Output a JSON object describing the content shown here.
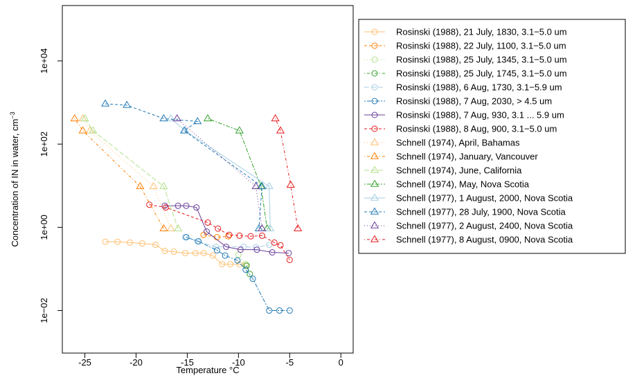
{
  "chart_data": {
    "type": "line",
    "xlabel": "Temperature °C",
    "ylabel": "Concentration of IN in water, cm",
    "ylabel_sup": "−3",
    "xlim": [
      -27.2,
      1.2
    ],
    "ylim": [
      0.00095,
      214000
    ],
    "log_y": true,
    "xticks": [
      -25,
      -20,
      -15,
      -10,
      -5,
      0
    ],
    "yticks": [
      {
        "value": 0.01,
        "label": "1e−02"
      },
      {
        "value": 1,
        "label": "1e+00"
      },
      {
        "value": 100,
        "label": "1e+02"
      },
      {
        "value": 10000,
        "label": "1e+04"
      }
    ],
    "legend_position": "right",
    "series": [
      {
        "name": "Rosinski (1988), 21 July, 1830, 3.1−5.0 um",
        "color": "#fdbf6f",
        "marker": "circle",
        "linestyle": "solid",
        "x": [
          -23,
          -21.8,
          -20.6,
          -19.4,
          -18.1,
          -17.2,
          -16.3,
          -15.2,
          -14.2,
          -13.4,
          -12.5,
          -11.6,
          -10.8,
          -9.9,
          -9.3
        ],
        "values": [
          0.45,
          0.45,
          0.43,
          0.41,
          0.38,
          0.27,
          0.26,
          0.24,
          0.24,
          0.24,
          0.21,
          0.13,
          0.13,
          0.13,
          0.12
        ]
      },
      {
        "name": "Rosinski (1988), 22 July, 1100, 3.1−5.0 um",
        "color": "#ff7f00",
        "marker": "circle",
        "linestyle": "dashed",
        "x": [
          -13.4,
          -12.1,
          -11
        ],
        "values": [
          0.66,
          0.58,
          0.61
        ]
      },
      {
        "name": "Rosinski (1988), 25 July, 1345, 3.1−5.0 um",
        "color": "#b2df8a",
        "marker": "circle",
        "linestyle": "dotted",
        "x": [
          -10,
          -9.3
        ],
        "values": [
          0.22,
          0.13
        ]
      },
      {
        "name": "Rosinski (1988), 25 July, 1745, 3.1−5.0 um",
        "color": "#33a02c",
        "marker": "circle",
        "linestyle": "dotdash",
        "x": [
          -9.2,
          -8.9
        ],
        "values": [
          0.12,
          0.076
        ]
      },
      {
        "name": "Rosinski (1988), 6 Aug, 1730, 3.1−5.9 um",
        "color": "#a6cee3",
        "marker": "circle",
        "linestyle": "longdash",
        "x": [
          -15.2,
          -14,
          -12.2,
          -9.5,
          -8.3,
          -7
        ],
        "values": [
          0.58,
          0.46,
          0.34,
          0.34,
          0.33,
          0.38
        ]
      },
      {
        "name": "Rosinski (1988), 7 Aug, 2030, > 4.5 um",
        "color": "#1f78b4",
        "marker": "circle",
        "linestyle": "twodash",
        "x": [
          -15.1,
          -13.9,
          -12.1,
          -11.3,
          -10.1,
          -9.3,
          -8.6,
          -7,
          -6,
          -5
        ],
        "values": [
          0.58,
          0.46,
          0.28,
          0.21,
          0.16,
          0.096,
          0.058,
          0.01,
          0.01,
          0.01
        ]
      },
      {
        "name": "Rosinski (1988), 7 Aug, 930, 3.1 ... 5.9 um",
        "color": "#6a3d9a",
        "marker": "circle",
        "linestyle": "solid",
        "x": [
          -17.2,
          -15.9,
          -15.1,
          -14.1,
          -13.1,
          -11.2,
          -9.8,
          -8.2,
          -6.7,
          -5.1
        ],
        "values": [
          3.3,
          3.3,
          3.3,
          3.0,
          0.79,
          0.34,
          0.29,
          0.29,
          0.25,
          0.24
        ]
      },
      {
        "name": "Rosinski (1988), 8 Aug, 900, 3.1−5.0 um",
        "color": "#e31a1c",
        "marker": "circle",
        "linestyle": "dashed",
        "x": [
          -18.7,
          -17.1,
          -13,
          -12,
          -10.9,
          -9.9,
          -8.8,
          -7.7,
          -6.5,
          -5.9,
          -5
        ],
        "values": [
          3.5,
          3.0,
          1.3,
          0.93,
          0.66,
          0.63,
          0.61,
          0.63,
          0.43,
          0.37,
          0.165
        ]
      },
      {
        "name": "Schnell (1974), April, Bahamas",
        "color": "#fdbf6f",
        "marker": "triangle",
        "linestyle": "dotted",
        "x": [
          -25.2,
          -24.5,
          -18.3,
          -16.6
        ],
        "values": [
          410,
          210,
          9.6,
          0.93
        ]
      },
      {
        "name": "Schnell (1974), January, Vancouver",
        "color": "#ff7f00",
        "marker": "triangle",
        "linestyle": "dotdash",
        "x": [
          -26,
          -25.2,
          -19.6,
          -17.3
        ],
        "values": [
          410,
          210,
          9.6,
          0.93
        ]
      },
      {
        "name": "Schnell (1974), June, California",
        "color": "#b2df8a",
        "marker": "triangle",
        "linestyle": "longdash",
        "x": [
          -25,
          -24.2,
          -17.3,
          -15.9
        ],
        "values": [
          410,
          210,
          9.6,
          0.93
        ]
      },
      {
        "name": "Schnell (1974), May, Nova Scotia",
        "color": "#33a02c",
        "marker": "triangle",
        "linestyle": "twodash",
        "x": [
          -13,
          -9.9,
          -7.8,
          -7.2
        ],
        "values": [
          410,
          210,
          9.6,
          0.93
        ]
      },
      {
        "name": "Schnell (1977), 1 August, 2000, Nova Scotia",
        "color": "#a6cee3",
        "marker": "triangle",
        "linestyle": "solid",
        "x": [
          -16.6,
          -15.2,
          -7,
          -6.9
        ],
        "values": [
          410,
          210,
          9.6,
          0.93
        ]
      },
      {
        "name": "Schnell (1977), 28 July, 1900, Nova Scotia",
        "color": "#1f78b4",
        "marker": "triangle",
        "linestyle": "dashed",
        "x": [
          -23,
          -20.9,
          -17.3,
          -14,
          -15.3,
          -7.7,
          -8
        ],
        "values": [
          930,
          860,
          410,
          350,
          210,
          9.6,
          0.93
        ]
      },
      {
        "name": "Schnell (1977), 2 August, 2400, Nova Scotia",
        "color": "#6a3d9a",
        "marker": "triangle",
        "linestyle": "dotted",
        "x": [
          -16,
          -8.3,
          -7.7
        ],
        "values": [
          410,
          9.6,
          0.93
        ]
      },
      {
        "name": "Schnell (1977), 8 August, 0900, Nova Scotia",
        "color": "#e31a1c",
        "marker": "triangle",
        "linestyle": "dotdash",
        "x": [
          -6.4,
          -5.9,
          -4.9,
          -4.2
        ],
        "values": [
          410,
          210,
          10.4,
          0.93
        ]
      }
    ]
  }
}
